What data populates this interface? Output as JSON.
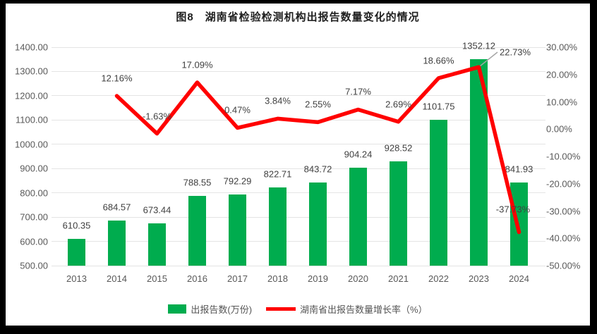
{
  "title": "图8　湖南省检验检测机构出报告数量变化的情况",
  "chart_data": {
    "type": "combo (bar + line)",
    "categories": [
      "2013",
      "2014",
      "2015",
      "2016",
      "2017",
      "2018",
      "2019",
      "2020",
      "2021",
      "2022",
      "2023",
      "2024"
    ],
    "series": [
      {
        "name": "出报告数(万份)",
        "type": "bar",
        "axis": "left",
        "color": "#00ac4e",
        "values": [
          610.35,
          684.57,
          673.44,
          788.55,
          792.29,
          822.71,
          843.72,
          904.24,
          928.52,
          1101.75,
          1352.12,
          841.93
        ]
      },
      {
        "name": "湖南省出报告数量增长率（%）",
        "type": "line",
        "axis": "right",
        "color": "#ff0000",
        "start_category_index": 1,
        "values": [
          12.16,
          -1.63,
          17.09,
          0.47,
          3.84,
          2.55,
          7.17,
          2.69,
          18.66,
          22.73,
          -37.73
        ],
        "label_placements": [
          "above",
          "above",
          "above",
          "above",
          "above",
          "above",
          "above",
          "above",
          "above",
          "leader-right",
          "left-above"
        ]
      }
    ],
    "left_axis": {
      "min": 500,
      "max": 1400,
      "step": 100,
      "labels": [
        "1400.00",
        "1300.00",
        "1200.00",
        "1100.00",
        "1000.00",
        "900.00",
        "800.00",
        "700.00",
        "600.00",
        "500.00"
      ]
    },
    "right_axis": {
      "min": -50,
      "max": 30,
      "step": 10,
      "labels": [
        "30.00%",
        "20.00%",
        "10.00%",
        "0.00%",
        "-10.00%",
        "-20.00%",
        "-30.00%",
        "-40.00%",
        "-50.00%"
      ]
    },
    "grid": "horizontal gridlines on primary (left) axis",
    "legend_position": "bottom-center"
  },
  "legend": {
    "items": [
      {
        "label": "出报告数(万份)",
        "swatch": "bar",
        "color": "#00ac4e"
      },
      {
        "label": "湖南省出报告数量增长率（%）",
        "swatch": "line",
        "color": "#ff0000"
      }
    ]
  },
  "colors": {
    "bar": "#00ac4e",
    "line": "#ff0000",
    "grid": "#e4e4e4",
    "axis_text": "#595959",
    "data_label_text": "#404040",
    "title_text": "#1f1f1f",
    "leader_line": "#a6a6a6",
    "frame": "#000000",
    "background": "#ffffff"
  }
}
